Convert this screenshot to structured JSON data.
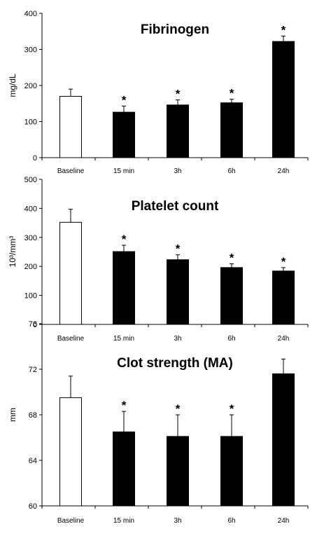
{
  "chart_data": [
    {
      "type": "bar",
      "title": "Fibrinogen",
      "ylabel": "mg/dL",
      "ylim": [
        0,
        400
      ],
      "yticks": [
        "0",
        "100",
        "200",
        "300",
        "400"
      ],
      "categories": [
        "Baseline",
        "15 min",
        "3h",
        "6h",
        "24h"
      ],
      "values": [
        170,
        126,
        146,
        152,
        322
      ],
      "errors": [
        20,
        17,
        14,
        10,
        15
      ],
      "significance": [
        "",
        "*",
        "*",
        "*",
        "*"
      ],
      "fill_colors": [
        "#ffffff",
        "#000000",
        "#000000",
        "#000000",
        "#000000"
      ]
    },
    {
      "type": "bar",
      "title": "Platelet count",
      "ylabel": "10³/mm³",
      "ylim": [
        0,
        500
      ],
      "yticks": [
        "0",
        "100",
        "200",
        "300",
        "400",
        "500"
      ],
      "categories": [
        "Baseline",
        "15 min",
        "3h",
        "6h",
        "24h"
      ],
      "values": [
        352,
        251,
        223,
        196,
        184
      ],
      "errors": [
        45,
        22,
        17,
        13,
        12
      ],
      "significance": [
        "",
        "*",
        "*",
        "*",
        "*"
      ],
      "fill_colors": [
        "#ffffff",
        "#000000",
        "#000000",
        "#000000",
        "#000000"
      ]
    },
    {
      "type": "bar",
      "title": "Clot strength (MA)",
      "ylabel": "mm",
      "ylim": [
        60,
        76
      ],
      "yticks": [
        "60",
        "64",
        "68",
        "72",
        "76"
      ],
      "categories": [
        "Baseline",
        "15 min",
        "3h",
        "6h",
        "24h"
      ],
      "values": [
        69.5,
        66.5,
        66.1,
        66.1,
        71.6
      ],
      "errors": [
        1.9,
        1.8,
        1.9,
        1.9,
        1.3
      ],
      "significance": [
        "",
        "*",
        "*",
        "*",
        ""
      ],
      "fill_colors": [
        "#ffffff",
        "#000000",
        "#000000",
        "#000000",
        "#000000"
      ]
    }
  ]
}
